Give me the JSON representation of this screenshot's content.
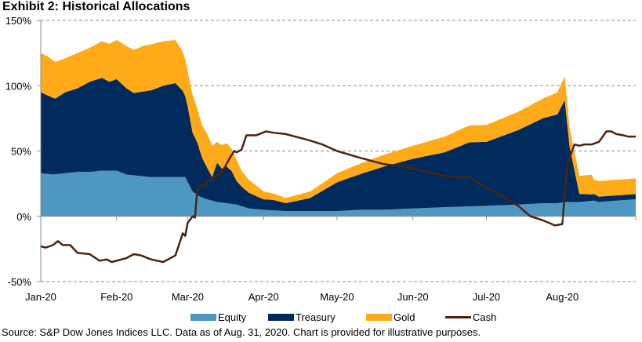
{
  "chart_data": {
    "type": "area",
    "title": "Exhibit 2: Historical Allocations",
    "xlabel": "",
    "ylabel": "",
    "ylim": [
      -50,
      150
    ],
    "yticks": [
      "150%",
      "100%",
      "50%",
      "0%",
      "-50%"
    ],
    "ytick_values": [
      150,
      100,
      50,
      0,
      -50
    ],
    "xticks": [
      "Jan-20",
      "Feb-20",
      "Mar-20",
      "Apr-20",
      "May-20",
      "Jun-20",
      "Jul-20",
      "Aug-20"
    ],
    "xtick_days": [
      0,
      31,
      60,
      91,
      121,
      152,
      182,
      213
    ],
    "x_unit": "day of 2020 (0 = Jan 1)",
    "xlim_days": [
      0,
      243
    ],
    "grid": "horizontal dashed",
    "legend_position": "bottom",
    "stacked": true,
    "series": [
      {
        "name": "Equity",
        "kind": "stacked-area",
        "color": "#4E97C1",
        "days": [
          0,
          5,
          10,
          15,
          20,
          25,
          31,
          35,
          40,
          45,
          50,
          55,
          59,
          62,
          65,
          68,
          72,
          76,
          80,
          85,
          91,
          100,
          110,
          121,
          130,
          140,
          152,
          165,
          182,
          195,
          205,
          211,
          214,
          220,
          226,
          228,
          235,
          243
        ],
        "values": [
          33,
          32,
          33,
          34,
          34,
          35,
          35,
          32,
          31,
          30,
          30,
          30,
          30,
          19,
          15,
          13,
          11,
          10,
          9,
          6,
          5,
          4,
          4,
          4,
          5,
          5,
          6,
          7,
          8,
          9,
          10,
          10,
          11,
          11,
          12,
          11,
          12,
          13
        ]
      },
      {
        "name": "Treasury",
        "kind": "stacked-area",
        "color": "#002B5C",
        "days": [
          0,
          3,
          6,
          10,
          15,
          20,
          25,
          28,
          31,
          34,
          38,
          42,
          46,
          50,
          55,
          58,
          60,
          62,
          64,
          66,
          68,
          70,
          72,
          74,
          76,
          78,
          80,
          82,
          85,
          88,
          91,
          95,
          100,
          110,
          121,
          130,
          140,
          152,
          165,
          175,
          182,
          195,
          205,
          211,
          214,
          216,
          220,
          225,
          226,
          228,
          235,
          243
        ],
        "values": [
          62,
          60,
          58,
          62,
          64,
          69,
          71,
          68,
          70,
          67,
          63,
          65,
          67,
          70,
          72,
          66,
          58,
          45,
          40,
          30,
          24,
          18,
          30,
          26,
          28,
          25,
          18,
          15,
          12,
          10,
          8,
          8,
          6,
          10,
          22,
          27,
          33,
          38,
          42,
          49,
          49,
          57,
          65,
          68,
          78,
          42,
          6,
          5,
          5,
          4,
          4,
          4
        ]
      },
      {
        "name": "Gold",
        "kind": "stacked-area",
        "color": "#FFAB19",
        "days": [
          0,
          3,
          6,
          10,
          15,
          20,
          25,
          28,
          31,
          34,
          38,
          42,
          46,
          50,
          55,
          58,
          60,
          62,
          64,
          66,
          68,
          70,
          72,
          74,
          76,
          78,
          80,
          82,
          85,
          88,
          91,
          95,
          100,
          110,
          121,
          130,
          140,
          152,
          165,
          175,
          182,
          195,
          205,
          211,
          214,
          216,
          220,
          225,
          226,
          228,
          235,
          243
        ],
        "values": [
          30,
          30,
          28,
          26,
          27,
          26,
          28,
          29,
          30,
          32,
          33,
          35,
          35,
          34,
          33,
          30,
          27,
          29,
          26,
          25,
          26,
          24,
          16,
          18,
          18,
          17,
          16,
          12,
          10,
          8,
          6,
          5,
          4,
          5,
          7,
          8,
          9,
          10,
          12,
          13,
          13,
          14,
          15,
          17,
          18,
          15,
          14,
          15,
          11,
          12,
          12,
          12
        ]
      },
      {
        "name": "Cash",
        "kind": "line",
        "color": "#4A2411",
        "days": [
          0,
          2,
          5,
          7,
          9,
          12,
          15,
          20,
          24,
          27,
          29,
          31,
          35,
          38,
          41,
          45,
          50,
          55,
          58,
          59,
          60,
          62,
          63,
          64,
          65,
          66,
          67,
          68,
          70,
          72,
          73,
          75,
          77,
          79,
          80,
          81,
          82,
          84,
          86,
          88,
          92,
          95,
          100,
          106,
          110,
          115,
          121,
          130,
          140,
          152,
          160,
          165,
          170,
          175,
          182,
          188,
          195,
          200,
          205,
          210,
          213,
          215,
          218,
          220,
          222,
          225,
          228,
          231,
          233,
          235,
          238,
          240,
          243
        ],
        "values": [
          -23,
          -24,
          -22,
          -19,
          -22,
          -22,
          -28,
          -29,
          -34,
          -33,
          -35,
          -34,
          -32,
          -29,
          -30,
          -33,
          -35,
          -30,
          -13,
          -15,
          -5,
          0,
          -1,
          22,
          23,
          24,
          23,
          27,
          28,
          31,
          32,
          37,
          44,
          50,
          49,
          50,
          51,
          62,
          62,
          62,
          65,
          64,
          63,
          60,
          58,
          55,
          50,
          45,
          40,
          37,
          33,
          31,
          30,
          30,
          22,
          16,
          8,
          0,
          -3,
          -7,
          -6,
          40,
          55,
          54,
          55,
          55,
          57,
          65,
          65,
          63,
          62,
          61,
          61
        ]
      }
    ]
  },
  "title": "Exhibit 2: Historical Allocations",
  "legend": [
    {
      "label": "Equity",
      "color": "#4E97C1",
      "symbol": "box"
    },
    {
      "label": "Treasury",
      "color": "#002B5C",
      "symbol": "box"
    },
    {
      "label": "Gold",
      "color": "#FFAB19",
      "symbol": "box"
    },
    {
      "label": "Cash",
      "color": "#4A2411",
      "symbol": "line"
    }
  ],
  "source": "Source: S&P Dow Jones Indices LLC. Data as of Aug. 31, 2020. Chart is provided for illustrative purposes."
}
